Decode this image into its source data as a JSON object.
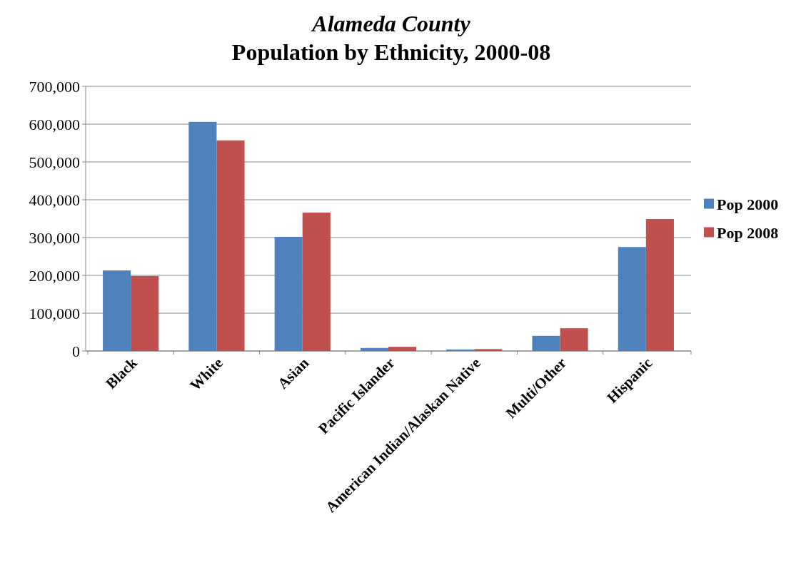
{
  "chart_data": {
    "type": "bar",
    "title": "Alameda County",
    "subtitle": "Population by Ethnicity, 2000-08",
    "categories": [
      "Black",
      "White",
      "Asian",
      "Pacific Islander",
      "American Indian/Alaskan Native",
      "Multi/Other",
      "Hispanic"
    ],
    "series": [
      {
        "name": "Pop 2000",
        "color": "#4f81bd",
        "values": [
          213000,
          606000,
          302000,
          8000,
          4000,
          40000,
          275000
        ]
      },
      {
        "name": "Pop 2008",
        "color": "#c0504d",
        "values": [
          198000,
          557000,
          366000,
          11000,
          5000,
          60000,
          349000
        ]
      }
    ],
    "ylim": [
      0,
      700000
    ],
    "yticks": [
      {
        "value": 0,
        "label": "0"
      },
      {
        "value": 100000,
        "label": "100,000"
      },
      {
        "value": 200000,
        "label": "200,000"
      },
      {
        "value": 300000,
        "label": "300,000"
      },
      {
        "value": 400000,
        "label": "400,000"
      },
      {
        "value": 500000,
        "label": "500,000"
      },
      {
        "value": 600000,
        "label": "600,000"
      },
      {
        "value": 700000,
        "label": "700,000"
      }
    ],
    "grid": "y",
    "legend": "right"
  }
}
